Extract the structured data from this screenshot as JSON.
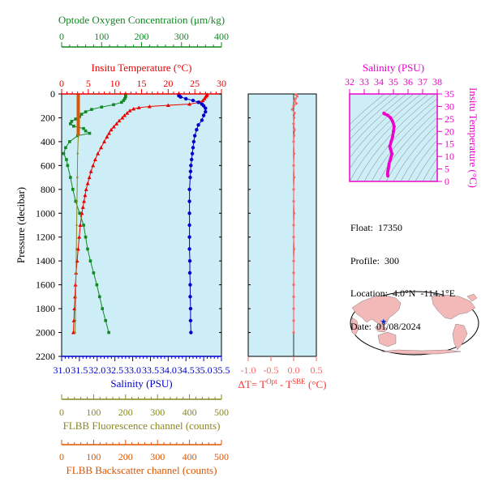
{
  "colors": {
    "plot_bg": "#cdeef7",
    "oxygen": "#118822",
    "temperature": "#ee0000",
    "salinity": "#0000cc",
    "fluorescence": "#888822",
    "backscatter": "#dd5500",
    "delta_t": "#ff6666",
    "ts": "#ee00cc",
    "map_land": "#f3b9b9",
    "map_marker": "#0033cc"
  },
  "float_info": {
    "float": "Float:  17350",
    "profile": "Profile:  300",
    "location": "Location:  4.0°N  -114.1°E",
    "date": "Date:  01/08/2024"
  },
  "map": {
    "marker_lon": -114.1,
    "marker_lat": 4.0
  },
  "chart_data": [
    {
      "type": "line",
      "panel": "main-profile",
      "ylabel": "Pressure (decibar)",
      "ylim": [
        2200,
        0
      ],
      "yticks": [
        0,
        200,
        400,
        600,
        800,
        1000,
        1200,
        1400,
        1600,
        1800,
        2000,
        2200
      ],
      "axes": {
        "oxygen": {
          "title": "Optode Oxygen Concentration (μm/kg)",
          "range": [
            0,
            400
          ],
          "ticks": [
            0,
            100,
            200,
            300,
            400
          ],
          "labels": [
            "0",
            "100",
            "200",
            "300",
            "400"
          ]
        },
        "temperature": {
          "title": "Insitu Temperature (°C)",
          "range": [
            0,
            30
          ],
          "ticks": [
            0,
            5,
            10,
            15,
            20,
            25,
            30
          ],
          "labels": [
            "0",
            "5",
            "10",
            "15",
            "20",
            "25",
            "30"
          ]
        },
        "salinity": {
          "title": "Salinity (PSU)",
          "range": [
            31,
            35.5
          ],
          "ticks": [
            31,
            31.5,
            32,
            32.5,
            33,
            33.5,
            34,
            34.5,
            35,
            35.5
          ],
          "labels": [
            "31.0",
            "31.5",
            "32.0",
            "32.5",
            "33.0",
            "33.5",
            "34.0",
            "34.5",
            "35.0",
            "35.5"
          ]
        },
        "fluorescence": {
          "title": "FLBB Fluorescence channel (counts)",
          "range": [
            0,
            500
          ],
          "ticks": [
            0,
            100,
            200,
            300,
            400,
            500
          ],
          "labels": [
            "0",
            "100",
            "200",
            "300",
            "400",
            "500"
          ]
        },
        "backscatter": {
          "title": "FLBB Backscatter channel (counts)",
          "range": [
            0,
            500
          ],
          "ticks": [
            0,
            100,
            200,
            300,
            400,
            500
          ],
          "labels": [
            "0",
            "100",
            "200",
            "300",
            "400",
            "500"
          ]
        }
      },
      "series": [
        {
          "key": "temperature",
          "pressure": [
            5,
            15,
            25,
            40,
            55,
            70,
            85,
            95,
            105,
            115,
            125,
            140,
            160,
            180,
            200,
            225,
            250,
            275,
            300,
            330,
            360,
            400,
            450,
            500,
            550,
            600,
            650,
            700,
            750,
            800,
            850,
            900,
            950,
            1000,
            1100,
            1200,
            1300,
            1400,
            1500,
            1600,
            1700,
            1800,
            1900,
            2000
          ],
          "values": [
            27.3,
            27.2,
            27.0,
            26.8,
            26.5,
            26.0,
            24.0,
            20.0,
            16.5,
            14.5,
            13.5,
            12.8,
            12.3,
            11.8,
            11.4,
            10.8,
            10.3,
            9.8,
            9.3,
            8.9,
            8.5,
            8.0,
            7.4,
            6.8,
            6.3,
            5.9,
            5.5,
            5.2,
            4.9,
            4.6,
            4.4,
            4.2,
            4.0,
            3.8,
            3.5,
            3.3,
            3.1,
            2.9,
            2.7,
            2.6,
            2.5,
            2.4,
            2.3,
            2.2
          ]
        },
        {
          "key": "salinity",
          "pressure": [
            5,
            15,
            25,
            40,
            55,
            70,
            85,
            100,
            120,
            150,
            180,
            220,
            260,
            300,
            350,
            400,
            450,
            500,
            550,
            600,
            650,
            700,
            800,
            900,
            1000,
            1100,
            1200,
            1300,
            1400,
            1500,
            1600,
            1700,
            1800,
            1900,
            2000
          ],
          "values": [
            34.3,
            34.3,
            34.35,
            34.5,
            34.7,
            34.85,
            34.95,
            35.0,
            35.05,
            35.05,
            35.0,
            34.95,
            34.85,
            34.8,
            34.75,
            34.72,
            34.7,
            34.68,
            34.66,
            34.64,
            34.63,
            34.62,
            34.6,
            34.6,
            34.6,
            34.6,
            34.6,
            34.6,
            34.61,
            34.61,
            34.62,
            34.62,
            34.63,
            34.63,
            34.64
          ]
        },
        {
          "key": "oxygen",
          "pressure": [
            5,
            15,
            25,
            40,
            55,
            70,
            90,
            110,
            130,
            150,
            170,
            190,
            210,
            230,
            250,
            270,
            290,
            310,
            330,
            350,
            400,
            450,
            500,
            550,
            600,
            700,
            800,
            900,
            1000,
            1100,
            1200,
            1300,
            1400,
            1500,
            1600,
            1700,
            1800,
            1900,
            2000
          ],
          "values": [
            160,
            160,
            160,
            158,
            155,
            150,
            130,
            100,
            75,
            60,
            50,
            45,
            35,
            25,
            22,
            30,
            55,
            60,
            70,
            40,
            20,
            10,
            5,
            12,
            15,
            22,
            28,
            35,
            45,
            55,
            60,
            65,
            72,
            80,
            88,
            95,
            102,
            110,
            118
          ]
        },
        {
          "key": "fluorescence",
          "pressure": [
            0,
            20,
            40,
            60,
            80,
            100,
            120,
            140,
            160,
            180,
            200,
            250,
            300,
            350
          ],
          "values": [
            52,
            52,
            52,
            52,
            52,
            52,
            52,
            52,
            52,
            52,
            52,
            52,
            52,
            52
          ]
        },
        {
          "key": "backscatter",
          "pressure": [
            350,
            500,
            700,
            900,
            1100,
            1300,
            1500,
            1700,
            1900,
            2000
          ],
          "values": [
            52,
            50,
            49,
            48,
            47,
            46,
            45,
            44,
            43,
            42
          ]
        }
      ]
    },
    {
      "type": "line",
      "panel": "delta-t",
      "xlabel": "ΔT= Tᴼᵖᵗ - Tˢᴮᴱ (°C)",
      "xlabel_parts": [
        "ΔT= T",
        "Opt",
        " - T",
        "SBE",
        " (°C)"
      ],
      "xlim": [
        -1.0,
        0.5
      ],
      "xticks": [
        -1.0,
        -0.5,
        0.0,
        0.5
      ],
      "xtick_labels": [
        "-1.0",
        "-0.5",
        "0.0",
        "0.5"
      ],
      "series": [
        {
          "pressure": [
            5,
            20,
            40,
            60,
            80,
            100,
            130,
            160,
            200,
            250,
            300,
            350,
            400,
            500,
            600,
            700,
            800,
            900,
            1000,
            1100,
            1200,
            1300,
            1400,
            1500,
            1600,
            1700,
            1800,
            1900,
            2000
          ],
          "values": [
            0.05,
            0.08,
            0.04,
            0.02,
            0.06,
            0.0,
            -0.03,
            0.02,
            0.01,
            0.0,
            0.02,
            0.01,
            0.0,
            0.01,
            0.0,
            0.01,
            0.0,
            0.0,
            0.01,
            0.0,
            0.0,
            0.01,
            0.0,
            0.0,
            0.0,
            0.0,
            0.0,
            0.0,
            0.0
          ]
        }
      ]
    },
    {
      "type": "scatter",
      "panel": "ts-diagram",
      "xlabel": "Salinity (PSU)",
      "ylabel": "Insitu Temperature (°C)",
      "xlim": [
        32,
        38
      ],
      "ylim": [
        0,
        35
      ],
      "xticks": [
        32,
        33,
        34,
        35,
        36,
        37,
        38
      ],
      "yticks": [
        0,
        5,
        10,
        15,
        20,
        25,
        30,
        35
      ],
      "series": [
        {
          "salinity": [
            34.62,
            34.6,
            34.62,
            34.65,
            34.68,
            34.7,
            34.75,
            34.8,
            34.85,
            34.9,
            34.85,
            34.8,
            34.75,
            34.85,
            34.95,
            35.0,
            35.05,
            34.95,
            34.8,
            34.6,
            34.4,
            34.35
          ],
          "temperature": [
            2.2,
            3.0,
            4.0,
            5.0,
            6.0,
            7.0,
            8.0,
            9.0,
            10.0,
            11.0,
            12.0,
            13.0,
            14.0,
            16.0,
            18.0,
            20.0,
            22.0,
            24.0,
            25.5,
            26.5,
            27.0,
            27.3
          ]
        }
      ]
    }
  ]
}
